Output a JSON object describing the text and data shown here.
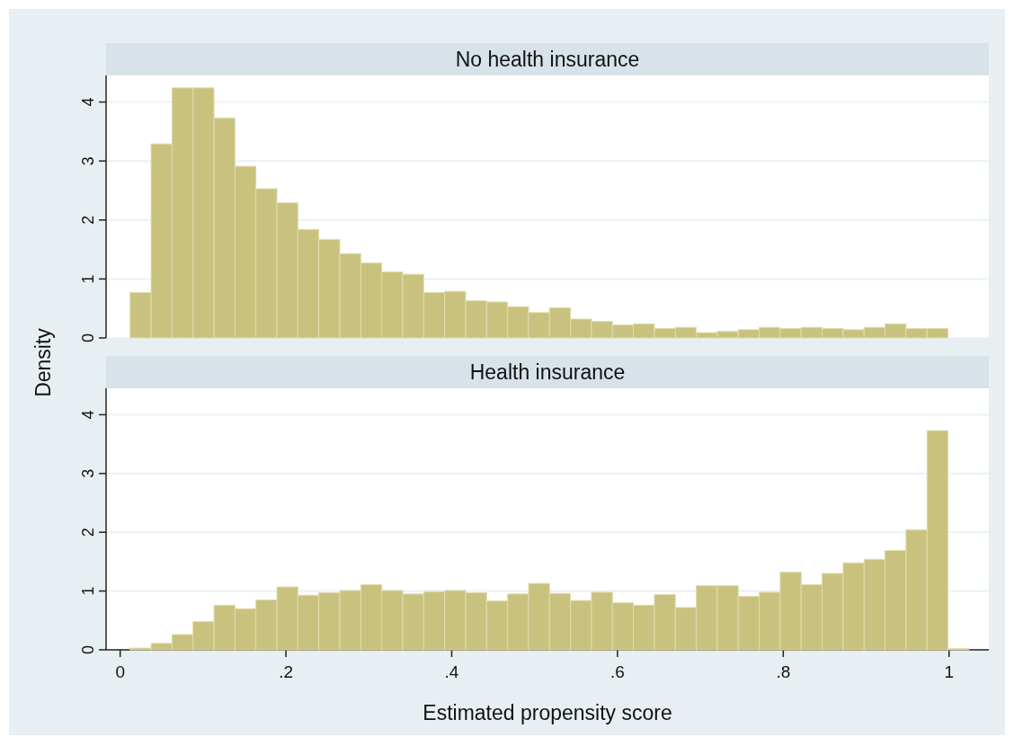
{
  "chart_data": [
    {
      "type": "histogram",
      "title": "No health insurance",
      "ylabel": "Density",
      "color": "#c9c27e",
      "bins": [
        0.012,
        0.0373,
        0.0626,
        0.0879,
        0.1132,
        0.1385,
        0.1638,
        0.1891,
        0.2144,
        0.2397,
        0.265,
        0.2903,
        0.3156,
        0.3409,
        0.3662,
        0.3915,
        0.4168,
        0.4421,
        0.4674,
        0.4927,
        0.518,
        0.5433,
        0.5686,
        0.5939,
        0.6192,
        0.6445,
        0.6698,
        0.6951,
        0.7204,
        0.7457,
        0.771,
        0.7963,
        0.8216,
        0.8469,
        0.8722,
        0.8975,
        0.9228,
        0.9481,
        0.9734,
        0.9987
      ],
      "values": [
        0.77,
        3.29,
        4.24,
        4.24,
        3.73,
        2.91,
        2.53,
        2.29,
        1.84,
        1.67,
        1.43,
        1.27,
        1.12,
        1.08,
        0.77,
        0.79,
        0.63,
        0.61,
        0.53,
        0.43,
        0.51,
        0.32,
        0.28,
        0.22,
        0.24,
        0.16,
        0.18,
        0.09,
        0.11,
        0.14,
        0.18,
        0.16,
        0.18,
        0.16,
        0.14,
        0.18,
        0.24,
        0.16,
        0.16
      ],
      "xlim": [
        -0.017,
        1.048
      ],
      "ylim": [
        0,
        4.45
      ],
      "yticks": [
        0,
        1,
        2,
        3,
        4
      ],
      "grid": "y",
      "tick_labels": "y"
    },
    {
      "type": "histogram",
      "title": "Health insurance",
      "xlabel": "Estimated propensity score",
      "color": "#c9c27e",
      "bins": [
        0.012,
        0.0373,
        0.0626,
        0.0879,
        0.1132,
        0.1385,
        0.1638,
        0.1891,
        0.2144,
        0.2397,
        0.265,
        0.2903,
        0.3156,
        0.3409,
        0.3662,
        0.3915,
        0.4168,
        0.4421,
        0.4674,
        0.4927,
        0.518,
        0.5433,
        0.5686,
        0.5939,
        0.6192,
        0.6445,
        0.6698,
        0.6951,
        0.7204,
        0.7457,
        0.771,
        0.7963,
        0.8216,
        0.8469,
        0.8722,
        0.8975,
        0.9228,
        0.9481,
        0.9734,
        0.9987,
        1.024
      ],
      "values": [
        0.03,
        0.11,
        0.26,
        0.48,
        0.76,
        0.7,
        0.85,
        1.07,
        0.93,
        0.97,
        1.01,
        1.11,
        1.01,
        0.95,
        0.99,
        1.01,
        0.97,
        0.83,
        0.95,
        1.13,
        0.96,
        0.84,
        0.98,
        0.8,
        0.76,
        0.94,
        0.72,
        1.09,
        1.09,
        0.91,
        0.98,
        1.32,
        1.11,
        1.3,
        1.48,
        1.54,
        1.69,
        2.04,
        3.73,
        0.02
      ],
      "xlim": [
        -0.017,
        1.048
      ],
      "ylim": [
        0,
        4.45
      ],
      "yticks": [
        0,
        1,
        2,
        3,
        4
      ],
      "xticks": [
        0,
        {
          "value": 0.2,
          "label": ".2"
        },
        {
          "value": 0.4,
          "label": ".4"
        },
        {
          "value": 0.6,
          "label": ".6"
        },
        {
          "value": 0.8,
          "label": ".8"
        },
        1
      ],
      "grid": "y"
    }
  ]
}
